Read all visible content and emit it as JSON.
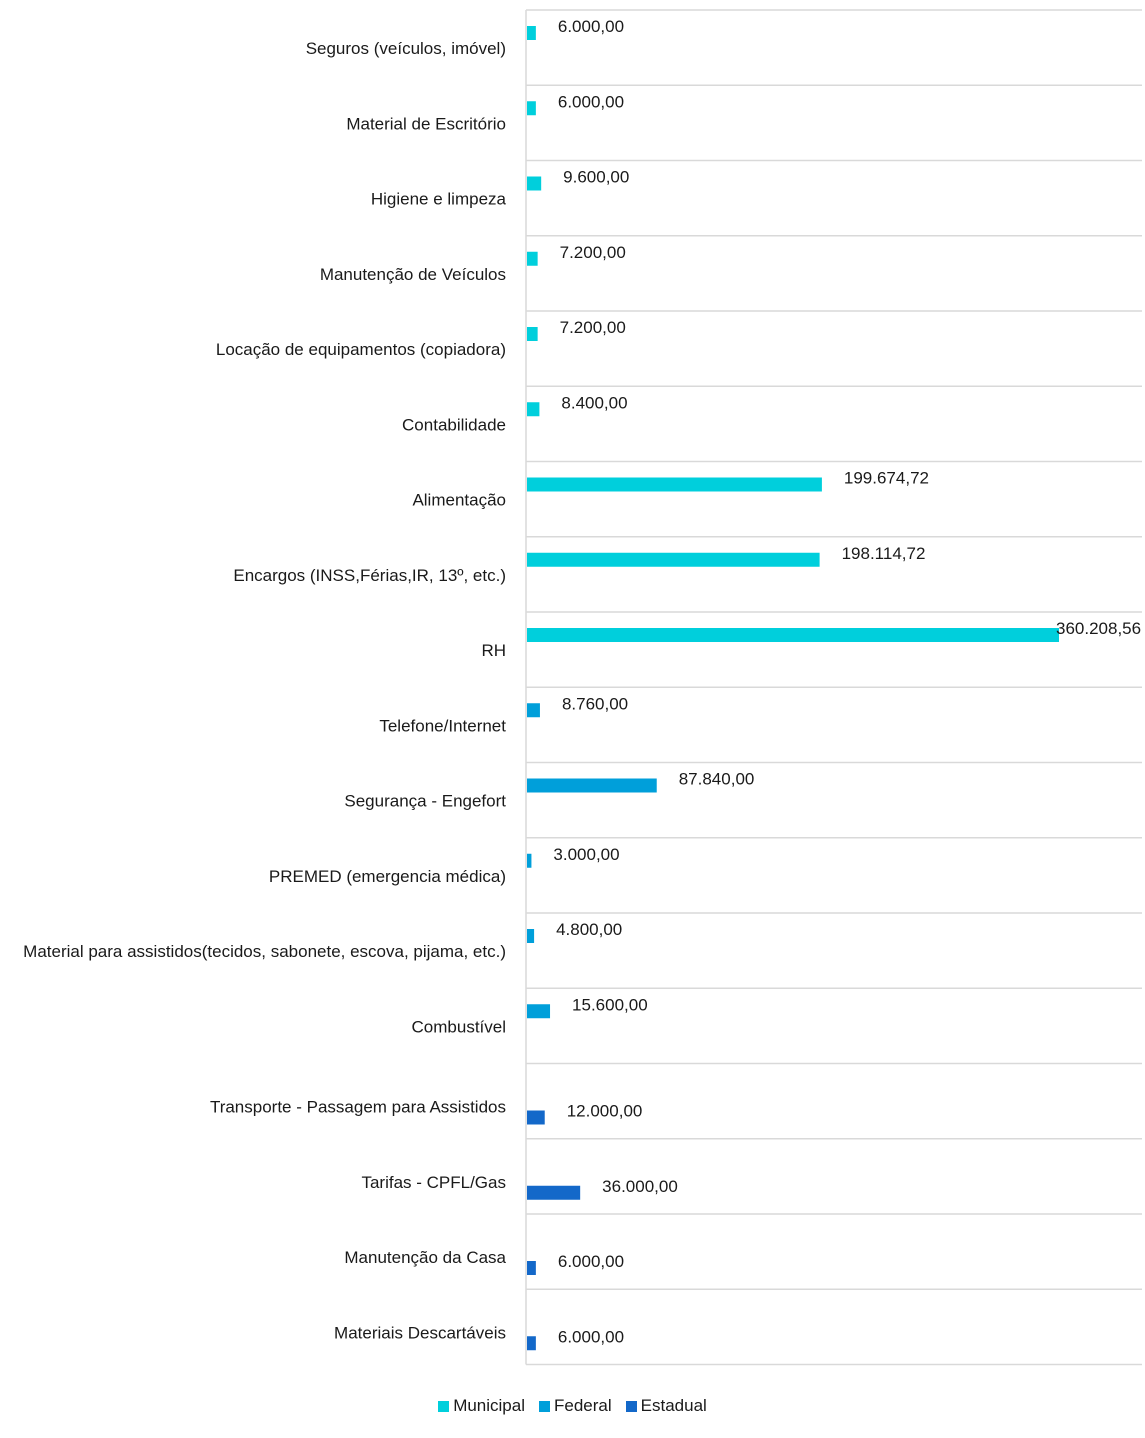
{
  "chart_data": {
    "type": "bar",
    "orientation": "horizontal",
    "grid": "horizontal lines between categories",
    "legend_placement": "bottom",
    "categories": [
      {
        "label": "Seguros (veículos, imóvel)",
        "value": 6000.0,
        "value_label": "6.000,00",
        "series": "Municipal"
      },
      {
        "label": "Material de Escritório",
        "value": 6000.0,
        "value_label": "6.000,00",
        "series": "Municipal"
      },
      {
        "label": "Higiene e limpeza",
        "value": 9600.0,
        "value_label": "9.600,00",
        "series": "Municipal"
      },
      {
        "label": "Manutenção de Veículos",
        "value": 7200.0,
        "value_label": "7.200,00",
        "series": "Municipal"
      },
      {
        "label": "Locação de equipamentos (copiadora)",
        "value": 7200.0,
        "value_label": "7.200,00",
        "series": "Municipal"
      },
      {
        "label": "Contabilidade",
        "value": 8400.0,
        "value_label": "8.400,00",
        "series": "Municipal"
      },
      {
        "label": "Alimentação",
        "value": 199674.72,
        "value_label": "199.674,72",
        "series": "Municipal"
      },
      {
        "label": "Encargos (INSS,Férias,IR, 13º, etc.)",
        "value": 198114.72,
        "value_label": "198.114,72",
        "series": "Municipal"
      },
      {
        "label": "RH",
        "value": 360208.56,
        "value_label": "360.208,56",
        "series": "Municipal"
      },
      {
        "label": "Telefone/Internet",
        "value": 8760.0,
        "value_label": "8.760,00",
        "series": "Federal"
      },
      {
        "label": "Segurança - Engefort",
        "value": 87840.0,
        "value_label": "87.840,00",
        "series": "Federal"
      },
      {
        "label": "PREMED (emergencia médica)",
        "value": 3000.0,
        "value_label": "3.000,00",
        "series": "Federal"
      },
      {
        "label": "Material para assistidos(tecidos, sabonete, escova, pijama, etc.)",
        "value": 4800.0,
        "value_label": "4.800,00",
        "series": "Federal"
      },
      {
        "label": "Combustível",
        "value": 15600.0,
        "value_label": "15.600,00",
        "series": "Federal"
      },
      {
        "label": "Transporte - Passagem para Assistidos",
        "value": 12000.0,
        "value_label": "12.000,00",
        "series": "Estadual"
      },
      {
        "label": "Tarifas - CPFL/Gas",
        "value": 36000.0,
        "value_label": "36.000,00",
        "series": "Estadual"
      },
      {
        "label": "Manutenção da Casa",
        "value": 6000.0,
        "value_label": "6.000,00",
        "series": "Estadual"
      },
      {
        "label": "Materiais Descartáveis",
        "value": 6000.0,
        "value_label": "6.000,00",
        "series": "Estadual"
      }
    ],
    "series": [
      {
        "name": "Municipal",
        "color": "#00CFDC"
      },
      {
        "name": "Federal",
        "color": "#009FDA"
      },
      {
        "name": "Estadual",
        "color": "#1368C9"
      }
    ],
    "xlim": [
      0,
      362000
    ]
  }
}
